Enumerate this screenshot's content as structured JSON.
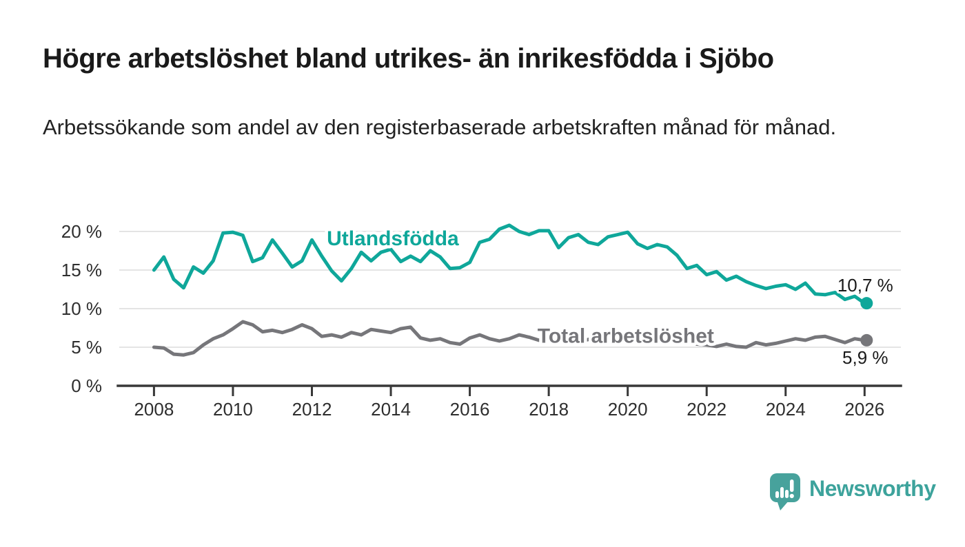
{
  "header": {
    "title": "Högre arbetslöshet bland utrikes- än inrikesfödda i Sjöbo",
    "subtitle": "Arbetssökande som andel av den registerbaserade arbetskraften månad för månad."
  },
  "chart_data": {
    "type": "line",
    "title": "Arbetssökande som andel av den registerbaserade arbetskraften månad för månad",
    "xlabel": "",
    "ylabel": "",
    "x_frequency": "quarterly samples of monthly series, decimal years",
    "xlim": [
      2007.12,
      2026.92
    ],
    "ylim": [
      0,
      22
    ],
    "grid": "horizontal",
    "legend_position": "inline-labels",
    "x": [
      2008,
      2008.25,
      2008.5,
      2008.75,
      2009,
      2009.25,
      2009.5,
      2009.75,
      2010,
      2010.25,
      2010.5,
      2010.75,
      2011,
      2011.25,
      2011.5,
      2011.75,
      2012,
      2012.25,
      2012.5,
      2012.75,
      2013,
      2013.25,
      2013.5,
      2013.75,
      2014,
      2014.25,
      2014.5,
      2014.75,
      2015,
      2015.25,
      2015.5,
      2015.75,
      2016,
      2016.25,
      2016.5,
      2016.75,
      2017,
      2017.25,
      2017.5,
      2017.75,
      2018,
      2018.25,
      2018.5,
      2018.75,
      2019,
      2019.25,
      2019.5,
      2019.75,
      2020,
      2020.25,
      2020.5,
      2020.75,
      2021,
      2021.25,
      2021.5,
      2021.75,
      2022,
      2022.25,
      2022.5,
      2022.75,
      2023,
      2023.25,
      2023.5,
      2023.75,
      2024,
      2024.25,
      2024.5,
      2024.75,
      2025,
      2025.25,
      2025.5,
      2025.75,
      2026
    ],
    "series": [
      {
        "name": "Utlandsfödda",
        "color": "#0fa79a",
        "end_value": 10.7,
        "end_label": "10,7 %",
        "label_pos": {
          "x": 2014.05,
          "y": 18.2
        },
        "values": [
          15.0,
          16.7,
          13.8,
          12.7,
          15.4,
          14.6,
          16.2,
          19.8,
          19.9,
          19.5,
          16.1,
          16.6,
          18.9,
          17.2,
          15.4,
          16.2,
          18.9,
          16.8,
          14.9,
          13.6,
          15.2,
          17.3,
          16.2,
          17.3,
          17.7,
          16.1,
          16.8,
          16.1,
          17.5,
          16.7,
          15.2,
          15.3,
          16.0,
          18.6,
          19.0,
          20.3,
          20.8,
          20.0,
          19.6,
          20.1,
          20.1,
          17.9,
          19.2,
          19.6,
          18.6,
          18.3,
          19.3,
          19.6,
          19.9,
          18.4,
          17.8,
          18.3,
          18.0,
          16.9,
          15.2,
          15.6,
          14.4,
          14.8,
          13.7,
          14.2,
          13.5,
          13.0,
          12.6,
          12.9,
          13.1,
          12.5,
          13.3,
          11.9,
          11.8,
          12.1,
          11.2,
          11.6,
          10.7
        ]
      },
      {
        "name": "Total arbetslöshet",
        "color": "#76767a",
        "end_value": 5.9,
        "end_label": "5,9 %",
        "label_pos": {
          "x": 2019.95,
          "y": 5.6
        },
        "values": [
          5.0,
          4.9,
          4.1,
          4.0,
          4.3,
          5.3,
          6.1,
          6.6,
          7.4,
          8.3,
          7.9,
          7.0,
          7.2,
          6.9,
          7.3,
          7.9,
          7.4,
          6.4,
          6.6,
          6.3,
          6.9,
          6.6,
          7.3,
          7.1,
          6.9,
          7.4,
          7.6,
          6.2,
          5.9,
          6.1,
          5.6,
          5.4,
          6.2,
          6.6,
          6.1,
          5.8,
          6.1,
          6.6,
          6.3,
          5.9,
          6.1,
          5.9,
          5.6,
          5.7,
          6.0,
          6.1,
          5.9,
          6.0,
          6.1,
          6.2,
          5.9,
          5.7,
          6.3,
          6.0,
          5.6,
          5.4,
          5.3,
          5.1,
          5.4,
          5.1,
          5.0,
          5.6,
          5.3,
          5.5,
          5.8,
          6.1,
          5.9,
          6.3,
          6.4,
          6.0,
          5.6,
          6.1,
          5.9
        ]
      }
    ],
    "xticks": [
      2008,
      2010,
      2012,
      2014,
      2016,
      2018,
      2020,
      2022,
      2024,
      2026
    ],
    "yticks": [
      {
        "value": 0,
        "label": "0 %"
      },
      {
        "value": 5,
        "label": "5 %"
      },
      {
        "value": 10,
        "label": "10 %"
      },
      {
        "value": 15,
        "label": "15 %"
      },
      {
        "value": 20,
        "label": "20 %"
      }
    ]
  },
  "branding": {
    "logo_text": "Newsworthy",
    "logo_color": "#3da39c",
    "logo_icon": "speech-bubble-with-bar-chart-and-exclamation"
  }
}
